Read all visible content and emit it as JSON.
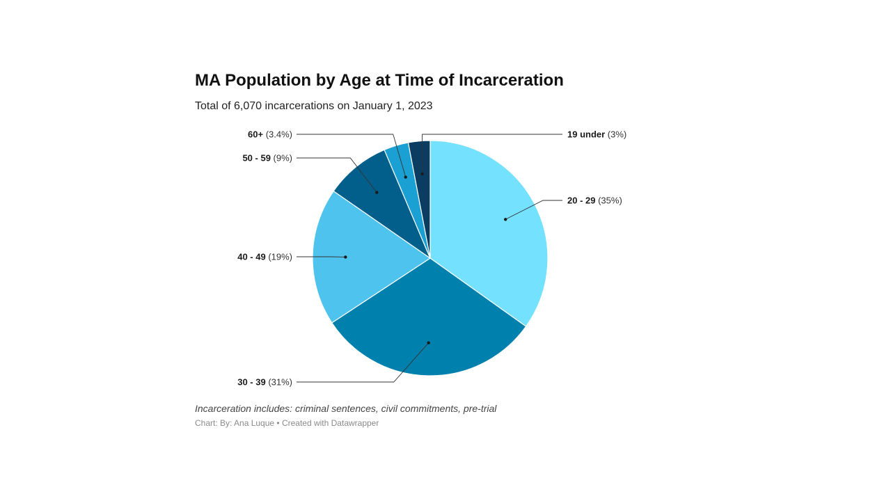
{
  "chart_data": {
    "type": "pie",
    "title": "MA Population by Age at Time of Incarceration",
    "subtitle": "Total of 6,070 incarcerations on January 1, 2023",
    "note": "Incarceration includes: criminal sentences, civil commitments, pre-trial",
    "credit": "Chart: By: Ana Luque • Created with Datawrapper",
    "slices": [
      {
        "label": "19 under",
        "pct_label": "(3%)",
        "value": 3,
        "color": "#0b3d63"
      },
      {
        "label": "20 - 29",
        "pct_label": "(35%)",
        "value": 35,
        "color": "#74e1fe"
      },
      {
        "label": "30 - 39",
        "pct_label": "(31%)",
        "value": 31,
        "color": "#0080ad"
      },
      {
        "label": "40 - 49",
        "pct_label": "(19%)",
        "value": 19,
        "color": "#4dc3ee"
      },
      {
        "label": "50 - 59",
        "pct_label": "(9%)",
        "value": 9,
        "color": "#025f8b"
      },
      {
        "label": "60+",
        "pct_label": "(3.4%)",
        "value": 3.4,
        "color": "#1aa0d2"
      }
    ],
    "start_angle_deg": -90,
    "direction": "clockwise",
    "order_note": "19 under is drawn last (just counter-clockwise of 12 o'clock)"
  }
}
